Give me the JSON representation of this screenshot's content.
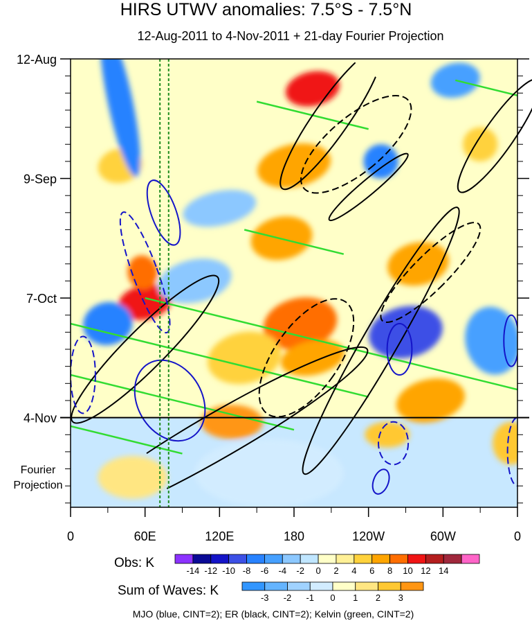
{
  "chart_data": {
    "type": "heatmap",
    "title": "HIRS UTWV anomalies: 7.5°S - 7.5°N",
    "subtitle": "12-Aug-2011 to 4-Nov-2011 + 21-day Fourier Projection",
    "x_axis": {
      "label": "",
      "ticks": [
        "0",
        "60E",
        "120E",
        "180",
        "120W",
        "60W",
        "0"
      ],
      "tick_values_deg_east": [
        0,
        60,
        120,
        180,
        240,
        300,
        360
      ],
      "range": [
        0,
        360
      ]
    },
    "y_axis": {
      "label": "",
      "ticks": [
        "12-Aug",
        "9-Sep",
        "7-Oct",
        "4-Nov"
      ],
      "tick_values_day": [
        0,
        28,
        56,
        84
      ],
      "range_days": [
        0,
        105
      ],
      "reversed": true
    },
    "fourier_projection": {
      "label": "Fourier Projection",
      "start_day": 84,
      "end_day": 105
    },
    "reference_lines": [
      {
        "style": "dotted",
        "color": "#1e8c1e",
        "lon": 72
      },
      {
        "style": "dotted",
        "color": "#1e8c1e",
        "lon": 79
      }
    ],
    "obs_colorbar": {
      "label": "Obs: K",
      "levels": [
        -14,
        -12,
        -10,
        -8,
        -6,
        -4,
        -2,
        0,
        2,
        4,
        6,
        8,
        10,
        12,
        14
      ],
      "colors": [
        "#8c32ff",
        "#0a0a96",
        "#1414c8",
        "#3c50e6",
        "#2882ff",
        "#46a0ff",
        "#8cc8ff",
        "#c0e6ff",
        "#ffffc8",
        "#fff096",
        "#ffd23c",
        "#ffa500",
        "#ff6e00",
        "#f01414",
        "#b41e1e",
        "#a0283c",
        "#ff64c8"
      ]
    },
    "waves_colorbar": {
      "label": "Sum of Waves: K",
      "levels": [
        -3,
        -2,
        -1,
        0,
        1,
        2,
        3
      ],
      "colors": [
        "#3296ff",
        "#64b4ff",
        "#a0d2ff",
        "#d2ecff",
        "#ffffc8",
        "#ffe682",
        "#ffc832",
        "#ff9614"
      ]
    },
    "overlays": [
      {
        "name": "MJO",
        "color": "blue",
        "cint": 2
      },
      {
        "name": "ER",
        "color": "black",
        "cint": 2
      },
      {
        "name": "Kelvin",
        "color": "green",
        "cint": 2
      }
    ],
    "field_blobs": [
      {
        "lon": 195,
        "day": 7,
        "rx": 22,
        "ry": 4,
        "v": 10
      },
      {
        "lon": 180,
        "day": 25,
        "rx": 30,
        "ry": 5,
        "v": 6
      },
      {
        "lon": 170,
        "day": 42,
        "rx": 25,
        "ry": 5,
        "v": 6
      },
      {
        "lon": 185,
        "day": 62,
        "rx": 30,
        "ry": 6,
        "v": 8
      },
      {
        "lon": 195,
        "day": 70,
        "rx": 26,
        "ry": 4,
        "v": 7
      },
      {
        "lon": 60,
        "day": 57,
        "rx": 22,
        "ry": 4,
        "v": 10
      },
      {
        "lon": 58,
        "day": 50,
        "rx": 12,
        "ry": 4,
        "v": 8
      },
      {
        "lon": 280,
        "day": 48,
        "rx": 25,
        "ry": 5,
        "v": 7
      },
      {
        "lon": 290,
        "day": 80,
        "rx": 28,
        "ry": 5,
        "v": 7
      },
      {
        "lon": 140,
        "day": 70,
        "rx": 30,
        "ry": 6,
        "v": 4
      },
      {
        "lon": 40,
        "day": 25,
        "rx": 18,
        "ry": 4,
        "v": 5
      },
      {
        "lon": 330,
        "day": 20,
        "rx": 14,
        "ry": 4,
        "v": 4
      },
      {
        "lon": 130,
        "day": 85,
        "rx": 25,
        "ry": 4,
        "v": 4
      },
      {
        "lon": 40,
        "day": 10,
        "rx": 10,
        "ry": 18,
        "v": -8
      },
      {
        "lon": 30,
        "day": 62,
        "rx": 20,
        "ry": 5,
        "v": -8
      },
      {
        "lon": 270,
        "day": 64,
        "rx": 30,
        "ry": 6,
        "v": -10
      },
      {
        "lon": 340,
        "day": 66,
        "rx": 22,
        "ry": 8,
        "v": -6
      },
      {
        "lon": 310,
        "day": 5,
        "rx": 20,
        "ry": 4,
        "v": -6
      },
      {
        "lon": 250,
        "day": 24,
        "rx": 14,
        "ry": 4,
        "v": -8
      },
      {
        "lon": 120,
        "day": 35,
        "rx": 30,
        "ry": 4,
        "v": -4
      },
      {
        "lon": 100,
        "day": 52,
        "rx": 30,
        "ry": 5,
        "v": -4
      },
      {
        "lon": 160,
        "day": 97,
        "rx": 60,
        "ry": 8,
        "v": -1
      },
      {
        "lon": 50,
        "day": 98,
        "rx": 28,
        "ry": 5,
        "v": 1
      },
      {
        "lon": 255,
        "day": 88,
        "rx": 18,
        "ry": 3,
        "v": 2
      },
      {
        "lon": 355,
        "day": 90,
        "rx": 15,
        "ry": 5,
        "v": 2
      }
    ]
  },
  "footnote": "MJO (blue, CINT=2); ER (black, CINT=2); Kelvin (green, CINT=2)",
  "colors": {
    "frame": "#000000",
    "background": "#ffffff"
  }
}
